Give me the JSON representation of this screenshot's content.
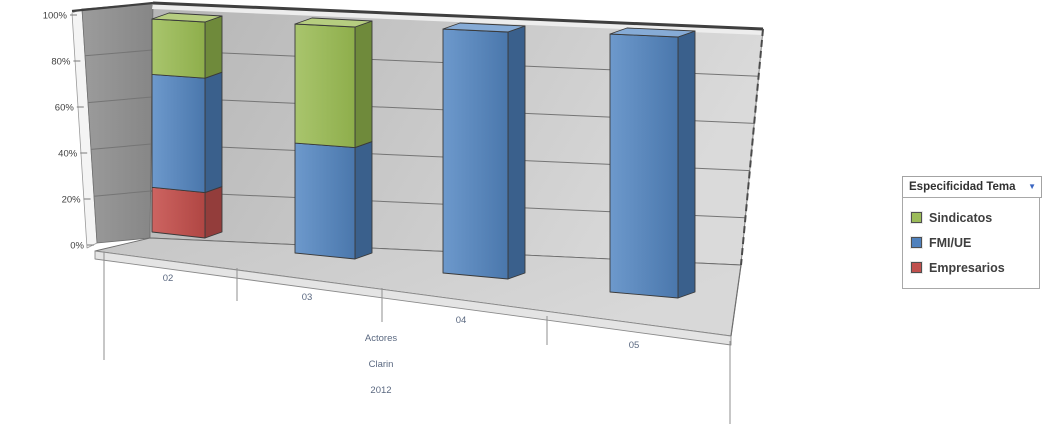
{
  "chart_data": {
    "type": "bar",
    "subtype": "3d-100pct-stacked-column",
    "categories": [
      "02",
      "03",
      "04",
      "05"
    ],
    "series": [
      {
        "name": "Empresarios",
        "color": "#C0504D",
        "values": [
          21,
          0,
          0,
          0
        ]
      },
      {
        "name": "FMI/UE",
        "color": "#4F81BD",
        "values": [
          53,
          48,
          100,
          100
        ]
      },
      {
        "name": "Sindicatos",
        "color": "#9BBB59",
        "values": [
          26,
          52,
          0,
          0
        ]
      }
    ],
    "stack_order_bottom_to_top": [
      "Empresarios",
      "FMI/UE",
      "Sindicatos"
    ],
    "value_axis": {
      "tick_labels": [
        "100%",
        "80%",
        "60%",
        "40%",
        "20%",
        "0%"
      ],
      "min": 0,
      "max": 100,
      "grid": true
    },
    "category_axis": {
      "group_labels": [
        "Actores",
        "Clarin",
        "2012"
      ]
    },
    "legend_position": "right",
    "title": ""
  },
  "legend": {
    "title": "Especificidad Tema",
    "dropdown_icon": "▼",
    "items": [
      {
        "label": "Sindicatos",
        "color": "#9BBB59"
      },
      {
        "label": "FMI/UE",
        "color": "#4F81BD"
      },
      {
        "label": "Empresarios",
        "color": "#C0504D"
      }
    ]
  },
  "colors": {
    "wall_left": "#b5b5b5",
    "wall_right": "#dadada",
    "side_wall_dark": "#8a8a8a",
    "floor": "#cccccc",
    "gridline": "#757575",
    "axis_text": "#3f3f3f",
    "category_text": "#5a6880",
    "edge": "#3f3f3f"
  }
}
